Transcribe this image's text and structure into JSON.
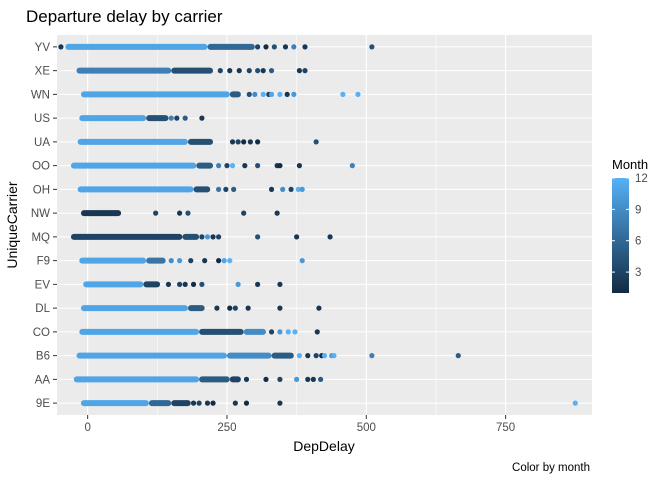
{
  "chart_data": {
    "type": "scatter",
    "title": "Departure delay by carrier",
    "xlabel": "DepDelay",
    "ylabel": "UniqueCarrier",
    "caption": "Color by month",
    "xlim": [
      -55,
      905
    ],
    "x_ticks": [
      0,
      250,
      500,
      750
    ],
    "x_tick_labels": [
      "0",
      "250",
      "500",
      "750"
    ],
    "categories": [
      "9E",
      "AA",
      "B6",
      "CO",
      "DL",
      "EV",
      "F9",
      "MQ",
      "NW",
      "OH",
      "OO",
      "UA",
      "US",
      "WN",
      "XE",
      "YV"
    ],
    "grid": true,
    "legend": {
      "title": "Month",
      "position": "right",
      "ticks": [
        3,
        6,
        9,
        12
      ],
      "range": [
        1,
        12
      ],
      "color_low": "#132b43",
      "color_high": "#56b1f7"
    },
    "colors": {
      "panel_background": "#ebebeb",
      "grid_major": "#ffffff"
    },
    "series": [
      {
        "carrier": "9E",
        "dense_ranges": [
          {
            "x0": -12,
            "x1": 110,
            "month": 11
          },
          {
            "x0": 110,
            "x1": 150,
            "month": 6
          },
          {
            "x0": 150,
            "x1": 185,
            "month": 3
          }
        ],
        "points": [
          {
            "x": 190,
            "month": 2
          },
          {
            "x": 200,
            "month": 3
          },
          {
            "x": 215,
            "month": 2
          },
          {
            "x": 225,
            "month": 1
          },
          {
            "x": 265,
            "month": 2
          },
          {
            "x": 285,
            "month": 1
          },
          {
            "x": 345,
            "month": 2
          },
          {
            "x": 875,
            "month": 12
          }
        ]
      },
      {
        "carrier": "AA",
        "dense_ranges": [
          {
            "x0": -25,
            "x1": 200,
            "month": 11
          },
          {
            "x0": 200,
            "x1": 255,
            "month": 5
          },
          {
            "x0": 255,
            "x1": 275,
            "month": 3
          }
        ],
        "points": [
          {
            "x": 285,
            "month": 2
          },
          {
            "x": 320,
            "month": 1
          },
          {
            "x": 345,
            "month": 3
          },
          {
            "x": 375,
            "month": 10
          },
          {
            "x": 395,
            "month": 2
          },
          {
            "x": 405,
            "month": 2
          },
          {
            "x": 418,
            "month": 5
          }
        ]
      },
      {
        "carrier": "B6",
        "dense_ranges": [
          {
            "x0": -20,
            "x1": 250,
            "month": 11
          },
          {
            "x0": 250,
            "x1": 330,
            "month": 9
          },
          {
            "x0": 330,
            "x1": 370,
            "month": 5
          }
        ],
        "points": [
          {
            "x": 380,
            "month": 12
          },
          {
            "x": 395,
            "month": 2
          },
          {
            "x": 410,
            "month": 3
          },
          {
            "x": 420,
            "month": 1
          },
          {
            "x": 425,
            "month": 12
          },
          {
            "x": 438,
            "month": 10
          },
          {
            "x": 442,
            "month": 12
          },
          {
            "x": 510,
            "month": 8
          },
          {
            "x": 665,
            "month": 5
          }
        ]
      },
      {
        "carrier": "CO",
        "dense_ranges": [
          {
            "x0": -15,
            "x1": 200,
            "month": 11
          },
          {
            "x0": 200,
            "x1": 280,
            "month": 4
          },
          {
            "x0": 280,
            "x1": 320,
            "month": 9
          }
        ],
        "points": [
          {
            "x": 330,
            "month": 3
          },
          {
            "x": 345,
            "month": 10
          },
          {
            "x": 360,
            "month": 12
          },
          {
            "x": 372,
            "month": 12
          },
          {
            "x": 412,
            "month": 2
          }
        ]
      },
      {
        "carrier": "DL",
        "dense_ranges": [
          {
            "x0": -12,
            "x1": 180,
            "month": 11
          },
          {
            "x0": 180,
            "x1": 210,
            "month": 5
          }
        ],
        "points": [
          {
            "x": 232,
            "month": 2
          },
          {
            "x": 255,
            "month": 1
          },
          {
            "x": 265,
            "month": 3
          },
          {
            "x": 288,
            "month": 2
          },
          {
            "x": 345,
            "month": 2
          },
          {
            "x": 415,
            "month": 2
          }
        ]
      },
      {
        "carrier": "EV",
        "dense_ranges": [
          {
            "x0": -8,
            "x1": 100,
            "month": 11
          },
          {
            "x0": 100,
            "x1": 130,
            "month": 3
          }
        ],
        "points": [
          {
            "x": 145,
            "month": 2
          },
          {
            "x": 165,
            "month": 3
          },
          {
            "x": 175,
            "month": 2
          },
          {
            "x": 190,
            "month": 1
          },
          {
            "x": 205,
            "month": 4
          },
          {
            "x": 270,
            "month": 10
          },
          {
            "x": 305,
            "month": 2
          },
          {
            "x": 345,
            "month": 2
          }
        ]
      },
      {
        "carrier": "F9",
        "dense_ranges": [
          {
            "x0": -15,
            "x1": 105,
            "month": 11
          },
          {
            "x0": 105,
            "x1": 140,
            "month": 7
          }
        ],
        "points": [
          {
            "x": 150,
            "month": 9
          },
          {
            "x": 165,
            "month": 10
          },
          {
            "x": 185,
            "month": 3
          },
          {
            "x": 210,
            "month": 2
          },
          {
            "x": 235,
            "month": 1
          },
          {
            "x": 245,
            "month": 11
          },
          {
            "x": 255,
            "month": 12
          },
          {
            "x": 385,
            "month": 10
          }
        ]
      },
      {
        "carrier": "MQ",
        "dense_ranges": [
          {
            "x0": -30,
            "x1": 170,
            "month": 3
          },
          {
            "x0": 170,
            "x1": 200,
            "month": 4
          }
        ],
        "points": [
          {
            "x": 205,
            "month": 3
          },
          {
            "x": 215,
            "month": 10
          },
          {
            "x": 225,
            "month": 2
          },
          {
            "x": 235,
            "month": 3
          },
          {
            "x": 305,
            "month": 4
          },
          {
            "x": 375,
            "month": 2
          },
          {
            "x": 435,
            "month": 2
          }
        ]
      },
      {
        "carrier": "NW",
        "dense_ranges": [
          {
            "x0": -12,
            "x1": 60,
            "month": 2
          }
        ],
        "points": [
          {
            "x": 122,
            "month": 3
          },
          {
            "x": 165,
            "month": 2
          },
          {
            "x": 180,
            "month": 4
          },
          {
            "x": 280,
            "month": 3
          },
          {
            "x": 340,
            "month": 2
          }
        ]
      },
      {
        "carrier": "OH",
        "dense_ranges": [
          {
            "x0": -18,
            "x1": 190,
            "month": 11
          },
          {
            "x0": 190,
            "x1": 220,
            "month": 4
          }
        ],
        "points": [
          {
            "x": 235,
            "month": 7
          },
          {
            "x": 248,
            "month": 3
          },
          {
            "x": 262,
            "month": 5
          },
          {
            "x": 330,
            "month": 2
          },
          {
            "x": 350,
            "month": 9
          },
          {
            "x": 365,
            "month": 3
          },
          {
            "x": 378,
            "month": 12
          },
          {
            "x": 385,
            "month": 10
          }
        ]
      },
      {
        "carrier": "OO",
        "dense_ranges": [
          {
            "x0": -30,
            "x1": 195,
            "month": 11
          },
          {
            "x0": 195,
            "x1": 225,
            "month": 5
          }
        ],
        "points": [
          {
            "x": 235,
            "month": 8
          },
          {
            "x": 250,
            "month": 3
          },
          {
            "x": 260,
            "month": 12
          },
          {
            "x": 282,
            "month": 2
          },
          {
            "x": 305,
            "month": 4
          },
          {
            "x": 340,
            "month": 2
          },
          {
            "x": 345,
            "month": 1
          },
          {
            "x": 380,
            "month": 2
          },
          {
            "x": 475,
            "month": 8
          }
        ]
      },
      {
        "carrier": "UA",
        "dense_ranges": [
          {
            "x0": -18,
            "x1": 180,
            "month": 11
          },
          {
            "x0": 180,
            "x1": 225,
            "month": 4
          }
        ],
        "points": [
          {
            "x": 260,
            "month": 2
          },
          {
            "x": 270,
            "month": 3
          },
          {
            "x": 280,
            "month": 1
          },
          {
            "x": 292,
            "month": 2
          },
          {
            "x": 305,
            "month": 1
          },
          {
            "x": 410,
            "month": 4
          }
        ]
      },
      {
        "carrier": "US",
        "dense_ranges": [
          {
            "x0": -15,
            "x1": 105,
            "month": 11
          },
          {
            "x0": 105,
            "x1": 145,
            "month": 4
          }
        ],
        "points": [
          {
            "x": 150,
            "month": 8
          },
          {
            "x": 160,
            "month": 3
          },
          {
            "x": 175,
            "month": 5
          },
          {
            "x": 205,
            "month": 2
          }
        ]
      },
      {
        "carrier": "WN",
        "dense_ranges": [
          {
            "x0": -12,
            "x1": 255,
            "month": 11
          },
          {
            "x0": 255,
            "x1": 275,
            "month": 5
          }
        ],
        "points": [
          {
            "x": 290,
            "month": 4
          },
          {
            "x": 300,
            "month": 9
          },
          {
            "x": 315,
            "month": 12
          },
          {
            "x": 325,
            "month": 3
          },
          {
            "x": 330,
            "month": 11
          },
          {
            "x": 345,
            "month": 12
          },
          {
            "x": 358,
            "month": 2
          },
          {
            "x": 370,
            "month": 10
          },
          {
            "x": 458,
            "month": 12
          },
          {
            "x": 485,
            "month": 12
          }
        ]
      },
      {
        "carrier": "XE",
        "dense_ranges": [
          {
            "x0": -20,
            "x1": 150,
            "month": 8
          },
          {
            "x0": 150,
            "x1": 225,
            "month": 4
          }
        ],
        "points": [
          {
            "x": 238,
            "month": 3
          },
          {
            "x": 255,
            "month": 2
          },
          {
            "x": 272,
            "month": 2
          },
          {
            "x": 290,
            "month": 3
          },
          {
            "x": 305,
            "month": 4
          },
          {
            "x": 315,
            "month": 2
          },
          {
            "x": 330,
            "month": 5
          },
          {
            "x": 380,
            "month": 2
          },
          {
            "x": 390,
            "month": 3
          }
        ]
      },
      {
        "carrier": "YV",
        "dense_ranges": [
          {
            "x0": -40,
            "x1": 215,
            "month": 11
          },
          {
            "x0": 215,
            "x1": 300,
            "month": 6
          }
        ],
        "points": [
          {
            "x": -48,
            "month": 2
          },
          {
            "x": 305,
            "month": 3
          },
          {
            "x": 320,
            "month": 1
          },
          {
            "x": 335,
            "month": 4
          },
          {
            "x": 355,
            "month": 2
          },
          {
            "x": 370,
            "month": 8
          },
          {
            "x": 390,
            "month": 2
          },
          {
            "x": 510,
            "month": 4
          }
        ]
      }
    ]
  }
}
